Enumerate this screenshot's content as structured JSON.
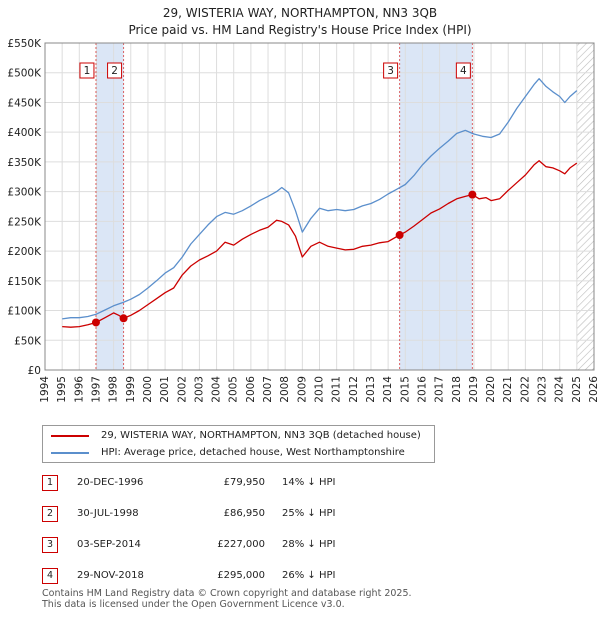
{
  "title_line1": "29, WISTERIA WAY, NORTHAMPTON, NN3 3QB",
  "title_line2": "Price paid vs. HM Land Registry's House Price Index (HPI)",
  "colors": {
    "red": "#cc0000",
    "blue": "#5b8fcc",
    "shade": "#dbe6f6",
    "grid": "#dddddd"
  },
  "chart_data": {
    "type": "line",
    "xlim": [
      1994,
      2026
    ],
    "ylim": [
      0,
      550000
    ],
    "y_ticks": [
      {
        "value": 0,
        "label": "£0"
      },
      {
        "value": 50000,
        "label": "£50K"
      },
      {
        "value": 100000,
        "label": "£100K"
      },
      {
        "value": 150000,
        "label": "£150K"
      },
      {
        "value": 200000,
        "label": "£200K"
      },
      {
        "value": 250000,
        "label": "£250K"
      },
      {
        "value": 300000,
        "label": "£300K"
      },
      {
        "value": 350000,
        "label": "£350K"
      },
      {
        "value": 400000,
        "label": "£400K"
      },
      {
        "value": 450000,
        "label": "£450K"
      },
      {
        "value": 500000,
        "label": "£500K"
      },
      {
        "value": 550000,
        "label": "£550K"
      }
    ],
    "x_ticks": [
      "1994",
      "1995",
      "1996",
      "1997",
      "1998",
      "1999",
      "2000",
      "2001",
      "2002",
      "2003",
      "2004",
      "2005",
      "2006",
      "2007",
      "2008",
      "2009",
      "2010",
      "2011",
      "2012",
      "2013",
      "2014",
      "2015",
      "2016",
      "2017",
      "2018",
      "2019",
      "2020",
      "2021",
      "2022",
      "2023",
      "2024",
      "2025",
      "2026"
    ],
    "shaded_periods": [
      [
        1996.97,
        1998.58
      ],
      [
        2014.67,
        2018.91
      ]
    ],
    "hatch_from": 2025.0,
    "series": [
      {
        "name": "29, WISTERIA WAY, NORTHAMPTON, NN3 3QB (detached house)",
        "color": "red",
        "x": [
          1995.0,
          1995.5,
          1996.0,
          1996.5,
          1996.97,
          1997.5,
          1998.0,
          1998.3,
          1998.58,
          1999.0,
          1999.5,
          2000.0,
          2000.5,
          2001.0,
          2001.5,
          2002.0,
          2002.5,
          2003.0,
          2003.5,
          2004.0,
          2004.5,
          2005.0,
          2005.5,
          2006.0,
          2006.5,
          2007.0,
          2007.5,
          2007.8,
          2008.2,
          2008.6,
          2009.0,
          2009.5,
          2010.0,
          2010.5,
          2011.0,
          2011.5,
          2012.0,
          2012.5,
          2013.0,
          2013.5,
          2014.0,
          2014.67,
          2015.0,
          2015.5,
          2016.0,
          2016.5,
          2017.0,
          2017.5,
          2018.0,
          2018.5,
          2018.91,
          2019.3,
          2019.7,
          2020.0,
          2020.5,
          2021.0,
          2021.5,
          2022.0,
          2022.5,
          2022.8,
          2023.2,
          2023.6,
          2024.0,
          2024.3,
          2024.6,
          2025.0
        ],
        "values": [
          73000,
          72000,
          73000,
          76000,
          79950,
          88000,
          96000,
          92000,
          86950,
          92000,
          100000,
          110000,
          120000,
          130000,
          138000,
          160000,
          175000,
          185000,
          192000,
          200000,
          215000,
          210000,
          220000,
          228000,
          235000,
          240000,
          252000,
          250000,
          244000,
          225000,
          190000,
          208000,
          215000,
          208000,
          205000,
          202000,
          203000,
          208000,
          210000,
          214000,
          216000,
          227000,
          232000,
          242000,
          253000,
          264000,
          271000,
          280000,
          288000,
          292000,
          295000,
          288000,
          290000,
          285000,
          288000,
          302000,
          315000,
          328000,
          345000,
          352000,
          342000,
          340000,
          335000,
          330000,
          340000,
          348000
        ]
      },
      {
        "name": "HPI: Average price, detached house, West Northamptonshire",
        "color": "blue",
        "x": [
          1995.0,
          1995.5,
          1996.0,
          1996.5,
          1997.0,
          1997.5,
          1998.0,
          1998.5,
          1999.0,
          1999.5,
          2000.0,
          2000.5,
          2001.0,
          2001.5,
          2002.0,
          2002.5,
          2003.0,
          2003.5,
          2004.0,
          2004.5,
          2005.0,
          2005.5,
          2006.0,
          2006.5,
          2007.0,
          2007.5,
          2007.8,
          2008.2,
          2008.6,
          2009.0,
          2009.5,
          2010.0,
          2010.5,
          2011.0,
          2011.5,
          2012.0,
          2012.5,
          2013.0,
          2013.5,
          2014.0,
          2014.5,
          2015.0,
          2015.5,
          2016.0,
          2016.5,
          2017.0,
          2017.5,
          2018.0,
          2018.5,
          2019.0,
          2019.5,
          2020.0,
          2020.5,
          2021.0,
          2021.5,
          2022.0,
          2022.5,
          2022.8,
          2023.2,
          2023.6,
          2024.0,
          2024.3,
          2024.6,
          2025.0
        ],
        "values": [
          86000,
          88000,
          88000,
          90000,
          94000,
          101000,
          108000,
          113000,
          119000,
          127000,
          138000,
          150000,
          163000,
          172000,
          190000,
          212000,
          228000,
          244000,
          258000,
          265000,
          262000,
          268000,
          276000,
          285000,
          292000,
          300000,
          307000,
          298000,
          268000,
          232000,
          255000,
          272000,
          268000,
          270000,
          268000,
          270000,
          276000,
          280000,
          287000,
          296000,
          304000,
          312000,
          327000,
          345000,
          360000,
          373000,
          385000,
          398000,
          403000,
          397000,
          393000,
          391000,
          397000,
          417000,
          440000,
          460000,
          480000,
          490000,
          477000,
          468000,
          460000,
          450000,
          460000,
          470000
        ]
      }
    ],
    "sale_points": [
      {
        "label": "1",
        "x": 1996.97,
        "value": 79950
      },
      {
        "label": "2",
        "x": 1998.58,
        "value": 86950
      },
      {
        "label": "3",
        "x": 2014.67,
        "value": 227000
      },
      {
        "label": "4",
        "x": 2018.91,
        "value": 295000
      }
    ]
  },
  "legend": {
    "red_label": "29, WISTERIA WAY, NORTHAMPTON, NN3 3QB (detached house)",
    "blue_label": "HPI: Average price, detached house, West Northamptonshire"
  },
  "transactions": [
    {
      "num": "1",
      "date": "20-DEC-1996",
      "price": "£79,950",
      "hpi": "14% ↓ HPI"
    },
    {
      "num": "2",
      "date": "30-JUL-1998",
      "price": "£86,950",
      "hpi": "25% ↓ HPI"
    },
    {
      "num": "3",
      "date": "03-SEP-2014",
      "price": "£227,000",
      "hpi": "28% ↓ HPI"
    },
    {
      "num": "4",
      "date": "29-NOV-2018",
      "price": "£295,000",
      "hpi": "26% ↓ HPI"
    }
  ],
  "footer": {
    "line1": "Contains HM Land Registry data © Crown copyright and database right 2025.",
    "line2": "This data is licensed under the Open Government Licence v3.0."
  }
}
